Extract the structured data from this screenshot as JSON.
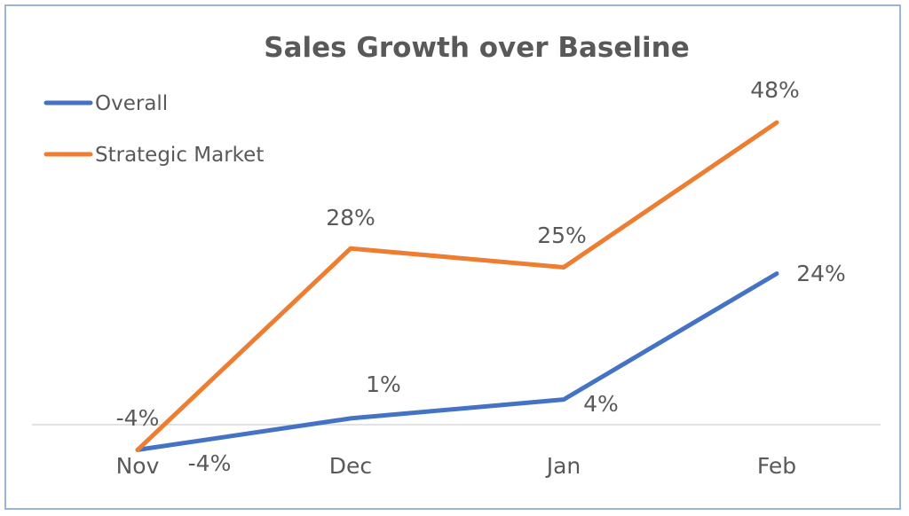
{
  "chart_data": {
    "type": "line",
    "title": "Sales Growth over Baseline",
    "categories": [
      "Nov",
      "Dec",
      "Jan",
      "Feb"
    ],
    "series": [
      {
        "name": "Overall",
        "values": [
          -4,
          1,
          4,
          24
        ],
        "labels": [
          "-4%",
          "1%",
          "4%",
          "24%"
        ],
        "color": "#4472c4"
      },
      {
        "name": "Strategic Market",
        "values": [
          -4,
          28,
          25,
          48
        ],
        "labels": [
          "-4%",
          "28%",
          "25%",
          "48%"
        ],
        "color": "#ed7d31"
      }
    ],
    "ylim": [
      -5,
      48
    ],
    "legend": "top-left",
    "grid": false,
    "axis_color": "#d9d9d9"
  }
}
